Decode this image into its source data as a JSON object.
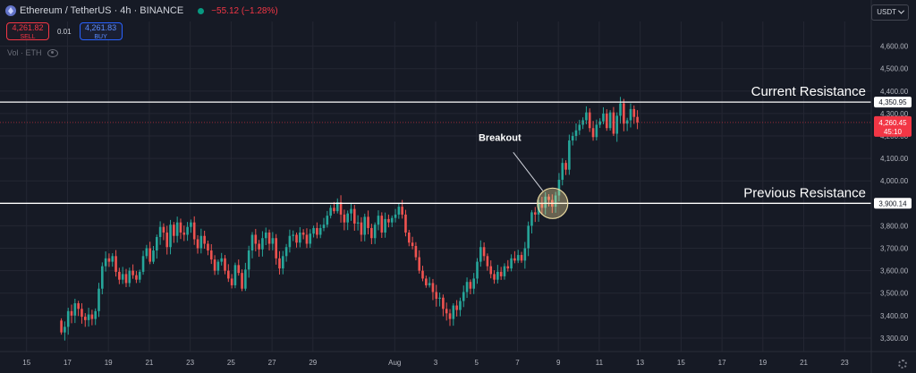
{
  "header": {
    "symbol_title": "Ethereum / TetherUS · 4h · BINANCE",
    "change": "−55.12 (−1.28%)",
    "sell_price": "4,261.82",
    "sell_label": "SELL",
    "spread": "0.01",
    "buy_price": "4,261.83",
    "buy_label": "BUY",
    "volume_label": "Vol · ETH",
    "currency": "USDT"
  },
  "colors": {
    "background": "#161a25",
    "up": "#26a69a",
    "down": "#ef5350",
    "grid": "#242733",
    "axis_text": "#b2b5be",
    "line": "#ffffff",
    "price_label": "#f23645"
  },
  "chart_data": {
    "type": "candlestick",
    "title": "",
    "xlabel": "",
    "ylabel": "",
    "ylim": [
      3240,
      4710
    ],
    "y_ticks": [
      "4,600.00",
      "4,500.00",
      "4,400.00",
      "4,300.00",
      "4,200.00",
      "4,100.00",
      "4,000.00",
      "3,900.00",
      "3,800.00",
      "3,700.00",
      "3,600.00",
      "3,500.00",
      "3,400.00",
      "3,300.00"
    ],
    "y_tick_values": [
      4600,
      4500,
      4400,
      4300,
      4200,
      4100,
      4000,
      3900,
      3800,
      3700,
      3600,
      3500,
      3400,
      3300
    ],
    "x_ticks": [
      "15",
      "17",
      "19",
      "21",
      "23",
      "25",
      "27",
      "29",
      "Aug",
      "3",
      "5",
      "7",
      "9",
      "11",
      "13",
      "15",
      "17",
      "19",
      "21",
      "23"
    ],
    "x_tick_days": [
      -17,
      -15,
      -13,
      -11,
      -9,
      -7,
      -5,
      -3,
      1,
      3,
      5,
      7,
      9,
      11,
      13,
      15,
      17,
      19,
      21,
      23
    ],
    "x_day_range": [
      -18.3,
      24.3
    ],
    "x_axis_note": "July 15 – August 23; x values are days relative to Jul 31 = 0",
    "candles_per_day": 6,
    "candle_start_day": -15.3,
    "close_start": 3378,
    "closes": [
      3325,
      3350,
      3420,
      3400,
      3455,
      3430,
      3395,
      3380,
      3405,
      3385,
      3420,
      3520,
      3620,
      3655,
      3640,
      3665,
      3595,
      3560,
      3585,
      3545,
      3600,
      3580,
      3560,
      3595,
      3665,
      3700,
      3640,
      3690,
      3750,
      3795,
      3770,
      3705,
      3805,
      3755,
      3815,
      3770,
      3760,
      3795,
      3815,
      3740,
      3700,
      3755,
      3720,
      3690,
      3650,
      3600,
      3640,
      3655,
      3600,
      3565,
      3535,
      3625,
      3590,
      3520,
      3605,
      3690,
      3760,
      3720,
      3695,
      3745,
      3770,
      3720,
      3745,
      3655,
      3610,
      3665,
      3705,
      3755,
      3760,
      3725,
      3770,
      3760,
      3720,
      3765,
      3790,
      3760,
      3790,
      3805,
      3845,
      3880,
      3865,
      3905,
      3850,
      3815,
      3855,
      3875,
      3810,
      3815,
      3760,
      3840,
      3790,
      3745,
      3805,
      3845,
      3770,
      3830,
      3815,
      3835,
      3850,
      3885,
      3850,
      3770,
      3725,
      3710,
      3660,
      3600,
      3565,
      3535,
      3545,
      3505,
      3475,
      3480,
      3430,
      3410,
      3385,
      3445,
      3425,
      3465,
      3505,
      3550,
      3520,
      3565,
      3640,
      3705,
      3665,
      3620,
      3585,
      3560,
      3595,
      3575,
      3620,
      3610,
      3655,
      3645,
      3670,
      3645,
      3700,
      3800,
      3860,
      3850,
      3900,
      3880,
      3930,
      3915,
      3885,
      3935,
      4005,
      4080,
      4050,
      4180,
      4200,
      4225,
      4250,
      4270,
      4305,
      4235,
      4195,
      4250,
      4265,
      4300,
      4235,
      4305,
      4210,
      4290,
      4345,
      4255,
      4270,
      4320,
      4285,
      4260.45
    ],
    "current_price": "4,260.45",
    "countdown": "45:10",
    "series": [
      {
        "name": "ETHUSDT",
        "current_price": 4260.45
      }
    ],
    "annotations": [
      {
        "type": "hline",
        "value": 4350.95,
        "label": "Current Resistance",
        "price_label": "4,350.95"
      },
      {
        "type": "hline",
        "value": 3900.14,
        "label": "Previous Resistance",
        "price_label": "3,900.14"
      },
      {
        "type": "circle",
        "label": "Breakout",
        "x_day": 8.72,
        "y": 3900
      }
    ]
  }
}
